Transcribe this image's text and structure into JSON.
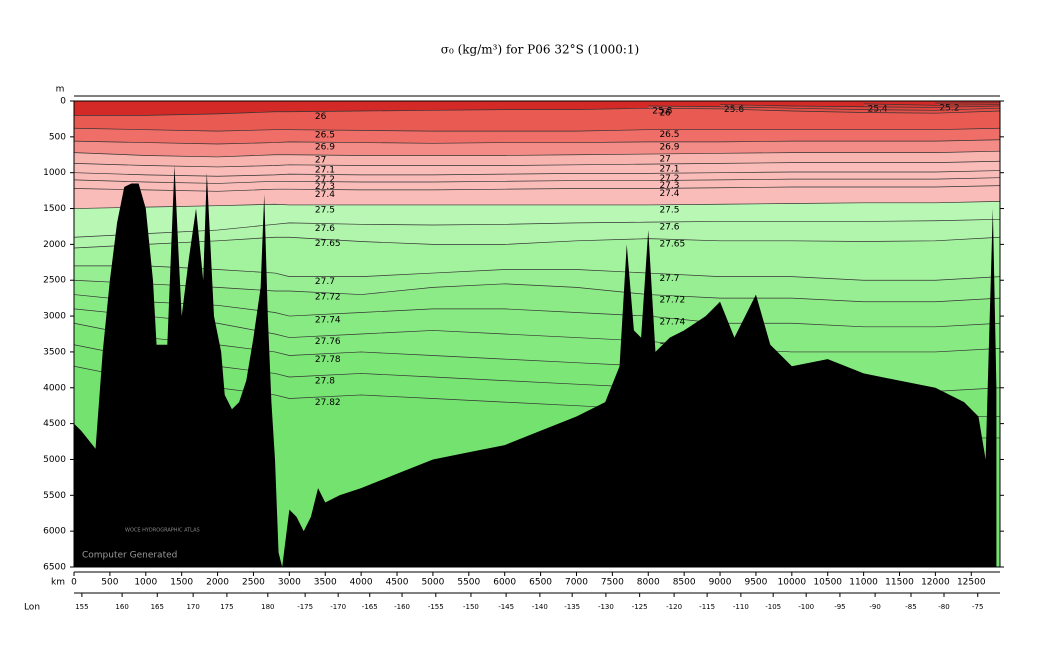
{
  "chart_data": {
    "type": "section",
    "title": "σ₀ (kg/m³) for P06 32°S (1000:1)",
    "y_label": "m",
    "x_label": "km",
    "x2_label": "Lon",
    "watermark": "WOCE HYDROGRAPHIC ATLAS",
    "note": "Computer Generated",
    "xlim": [
      0,
      12900
    ],
    "ylim": [
      6500,
      0
    ],
    "xticks": [
      0,
      500,
      1000,
      1500,
      2000,
      2500,
      3000,
      3500,
      4000,
      4500,
      5000,
      5500,
      6000,
      6500,
      7000,
      7500,
      8000,
      8500,
      9000,
      9500,
      10000,
      10500,
      11000,
      11500,
      12000,
      12500
    ],
    "yticks": [
      0,
      500,
      1000,
      1500,
      2000,
      2500,
      3000,
      3500,
      4000,
      4500,
      5000,
      5500,
      6000,
      6500
    ],
    "x2ticks": [
      {
        "value": 110,
        "label": "155"
      },
      {
        "value": 670,
        "label": "160"
      },
      {
        "value": 1160,
        "label": "165"
      },
      {
        "value": 1660,
        "label": "170"
      },
      {
        "value": 2130,
        "label": "175"
      },
      {
        "value": 2700,
        "label": "180"
      },
      {
        "value": 3220,
        "label": "-175"
      },
      {
        "value": 3680,
        "label": "-170"
      },
      {
        "value": 4120,
        "label": "-165"
      },
      {
        "value": 4570,
        "label": "-160"
      },
      {
        "value": 5040,
        "label": "-155"
      },
      {
        "value": 5530,
        "label": "-150"
      },
      {
        "value": 6020,
        "label": "-145"
      },
      {
        "value": 6490,
        "label": "-140"
      },
      {
        "value": 6940,
        "label": "-135"
      },
      {
        "value": 7410,
        "label": "-130"
      },
      {
        "value": 7880,
        "label": "-125"
      },
      {
        "value": 8360,
        "label": "-120"
      },
      {
        "value": 8820,
        "label": "-115"
      },
      {
        "value": 9290,
        "label": "-110"
      },
      {
        "value": 9740,
        "label": "-105"
      },
      {
        "value": 10200,
        "label": "-100"
      },
      {
        "value": 10670,
        "label": "-95"
      },
      {
        "value": 11160,
        "label": "-90"
      },
      {
        "value": 11660,
        "label": "-85"
      },
      {
        "value": 12120,
        "label": "-80"
      },
      {
        "value": 12590,
        "label": "-75"
      }
    ],
    "surface_color": "#d42a27",
    "contour_x": [
      0,
      1000,
      2000,
      2800,
      3000,
      4000,
      5000,
      6000,
      7000,
      8000,
      9000,
      10000,
      11000,
      12000,
      12900
    ],
    "contours": [
      {
        "level": 25.2,
        "color": "#d8332f",
        "depths": [
          null,
          null,
          null,
          null,
          null,
          null,
          null,
          null,
          null,
          null,
          null,
          null,
          null,
          30,
          25
        ]
      },
      {
        "level": 25.4,
        "color": "#dc3c37",
        "depths": [
          null,
          null,
          null,
          null,
          null,
          null,
          null,
          null,
          null,
          null,
          null,
          null,
          40,
          60,
          50
        ]
      },
      {
        "level": 25.6,
        "color": "#e0453f",
        "depths": [
          null,
          null,
          null,
          null,
          null,
          null,
          null,
          null,
          null,
          null,
          50,
          70,
          80,
          90,
          70
        ]
      },
      {
        "level": 25.8,
        "color": "#e44f48",
        "depths": [
          null,
          null,
          null,
          null,
          null,
          null,
          null,
          null,
          null,
          70,
          80,
          100,
          120,
          130,
          100
        ]
      },
      {
        "level": 26,
        "color": "#e85a52",
        "depths": [
          200,
          200,
          180,
          150,
          150,
          140,
          130,
          120,
          120,
          100,
          110,
          140,
          160,
          170,
          140
        ]
      },
      {
        "level": 26.5,
        "color": "#ef6e68",
        "depths": [
          380,
          400,
          420,
          400,
          400,
          410,
          420,
          420,
          420,
          400,
          400,
          400,
          400,
          400,
          380
        ]
      },
      {
        "level": 26.9,
        "color": "#f38c86",
        "depths": [
          560,
          580,
          600,
          580,
          570,
          580,
          590,
          580,
          580,
          570,
          570,
          560,
          560,
          560,
          540
        ]
      },
      {
        "level": 27,
        "color": "#f8b5b0",
        "depths": [
          720,
          760,
          780,
          750,
          750,
          760,
          760,
          760,
          750,
          740,
          730,
          720,
          720,
          720,
          700
        ]
      },
      {
        "level": 27.1,
        "color": "#f9bcb8",
        "depths": [
          870,
          900,
          920,
          900,
          890,
          900,
          900,
          900,
          890,
          880,
          870,
          860,
          860,
          860,
          840
        ]
      },
      {
        "level": 27.2,
        "color": "#f9bcb8",
        "depths": [
          1000,
          1030,
          1050,
          1030,
          1020,
          1030,
          1030,
          1020,
          1010,
          1010,
          1000,
          990,
          990,
          990,
          970
        ]
      },
      {
        "level": 27.3,
        "color": "#f9bcb8",
        "depths": [
          1100,
          1130,
          1150,
          1120,
          1120,
          1130,
          1130,
          1120,
          1110,
          1110,
          1100,
          1090,
          1090,
          1090,
          1070
        ]
      },
      {
        "level": 27.4,
        "color": "#f9bcb8",
        "depths": [
          1220,
          1240,
          1260,
          1230,
          1230,
          1240,
          1240,
          1230,
          1220,
          1220,
          1210,
          1200,
          1200,
          1200,
          1180
        ]
      },
      {
        "level": 27.5,
        "color": "#b8f8b4",
        "depths": [
          1500,
          1480,
          1460,
          1440,
          1450,
          1450,
          1450,
          1450,
          1450,
          1450,
          1440,
          1430,
          1420,
          1420,
          1400
        ]
      },
      {
        "level": 27.6,
        "color": "#b0f5ab",
        "depths": [
          1900,
          1850,
          1800,
          1720,
          1700,
          1720,
          1730,
          1720,
          1700,
          1690,
          1680,
          1680,
          1680,
          1670,
          1650
        ]
      },
      {
        "level": 27.65,
        "color": "#a3f29e",
        "depths": [
          2050,
          2000,
          1950,
          1900,
          1900,
          1960,
          2000,
          2000,
          1950,
          1920,
          1950,
          1950,
          1960,
          1950,
          1900
        ]
      },
      {
        "level": 27.7,
        "color": "#98ee92",
        "depths": [
          2300,
          2300,
          2350,
          2400,
          2450,
          2450,
          2400,
          2350,
          2350,
          2400,
          2450,
          2450,
          2500,
          2500,
          2450
        ]
      },
      {
        "level": 27.72,
        "color": "#8ceb86",
        "depths": [
          2500,
          2550,
          2600,
          2650,
          2650,
          2700,
          2600,
          2550,
          2600,
          2700,
          2750,
          2750,
          2800,
          2800,
          2750
        ]
      },
      {
        "level": 27.74,
        "color": "#88ea82",
        "depths": [
          2700,
          2800,
          2850,
          2950,
          3000,
          2950,
          2900,
          2900,
          2950,
          3000,
          3100,
          3100,
          3150,
          3150,
          3100
        ]
      },
      {
        "level": 27.76,
        "color": "#84e97f",
        "depths": [
          2900,
          3000,
          3100,
          3250,
          3300,
          3250,
          3200,
          3250,
          3300,
          3350,
          3450,
          3500,
          3500,
          3500,
          3450
        ]
      },
      {
        "level": 27.78,
        "color": "#7ce677",
        "depths": [
          3100,
          3300,
          3400,
          3500,
          3550,
          3500,
          3550,
          3600,
          3650,
          3700,
          3800,
          3900,
          3950,
          4050,
          4000
        ]
      },
      {
        "level": 27.8,
        "color": "#78e473",
        "depths": [
          3400,
          3600,
          3700,
          3800,
          3850,
          3800,
          3850,
          3900,
          3950,
          4000,
          4100,
          4200,
          4300,
          4400,
          4400
        ]
      },
      {
        "level": 27.82,
        "color": "#74e26f",
        "depths": [
          3700,
          3900,
          4000,
          4100,
          4150,
          4100,
          4150,
          4200,
          4250,
          4300,
          4400,
          4500,
          4600,
          4700,
          4700
        ]
      }
    ],
    "bathymetry": {
      "color": "#000000",
      "x": [
        0,
        100,
        300,
        400,
        500,
        600,
        700,
        800,
        900,
        1000,
        1100,
        1150,
        1300,
        1400,
        1450,
        1500,
        1600,
        1700,
        1800,
        1850,
        1900,
        1950,
        2050,
        2100,
        2200,
        2300,
        2400,
        2500,
        2600,
        2650,
        2700,
        2750,
        2800,
        2850,
        2900,
        3000,
        3100,
        3200,
        3300,
        3400,
        3500,
        3700,
        4000,
        4500,
        5000,
        5500,
        6000,
        6500,
        7000,
        7400,
        7600,
        7700,
        7800,
        7900,
        8000,
        8100,
        8300,
        8500,
        8800,
        9000,
        9200,
        9500,
        9700,
        10000,
        10500,
        11000,
        11500,
        12000,
        12400,
        12600,
        12700,
        12800,
        12850
      ],
      "depths": [
        4500,
        4600,
        4850,
        3500,
        2500,
        1700,
        1200,
        1150,
        1150,
        1500,
        2500,
        3400,
        3400,
        900,
        2000,
        3000,
        2200,
        1500,
        2500,
        1000,
        2000,
        3000,
        3500,
        4100,
        4300,
        4200,
        3900,
        3300,
        2600,
        1300,
        3000,
        4200,
        5000,
        6300,
        6500,
        5700,
        5800,
        6000,
        5800,
        5400,
        5600,
        5500,
        5400,
        5200,
        5000,
        4900,
        4800,
        4600,
        4400,
        4200,
        3700,
        2000,
        3200,
        3300,
        1800,
        3500,
        3300,
        3200,
        3000,
        2800,
        3300,
        2700,
        3400,
        3700,
        3600,
        3800,
        3900,
        4000,
        4200,
        4400,
        5000,
        1500,
        4000
      ]
    }
  }
}
